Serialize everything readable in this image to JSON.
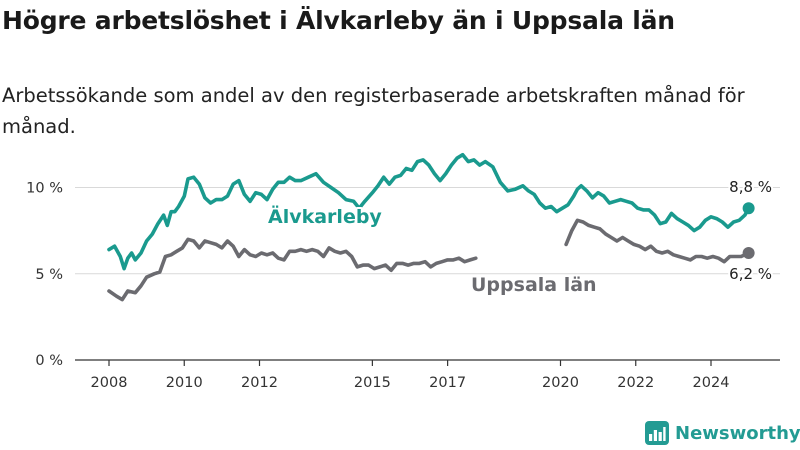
{
  "title": "Högre arbetslöshet i Älvkarleby än i Uppsala län",
  "subtitle": "Arbetssökande som andel av den registerbaserade arbetskraften månad för månad.",
  "brand": {
    "name": "Newsworthy",
    "icon": "newsworthy-bar-chart-icon",
    "color": "#239b93"
  },
  "chart_data": {
    "type": "line",
    "xlabel": "",
    "ylabel": "",
    "ylim": [
      0,
      12
    ],
    "xlim": [
      2007.5,
      2025.3
    ],
    "grid": true,
    "yticks": [
      {
        "value": 0,
        "label": "0 %"
      },
      {
        "value": 5,
        "label": "5 %"
      },
      {
        "value": 10,
        "label": "10 %"
      }
    ],
    "xticks": [
      {
        "value": 2008,
        "label": "2008"
      },
      {
        "value": 2010,
        "label": "2010"
      },
      {
        "value": 2012,
        "label": "2012"
      },
      {
        "value": 2015,
        "label": "2015"
      },
      {
        "value": 2017,
        "label": "2017"
      },
      {
        "value": 2020,
        "label": "2020"
      },
      {
        "value": 2022,
        "label": "2022"
      },
      {
        "value": 2024,
        "label": "2024"
      }
    ],
    "series": [
      {
        "name": "Älvkarleby",
        "color": "#1a9a8e",
        "end_label": "8,8 %",
        "points": [
          [
            2008.0,
            6.4
          ],
          [
            2008.15,
            6.6
          ],
          [
            2008.3,
            6.0
          ],
          [
            2008.4,
            5.3
          ],
          [
            2008.5,
            5.9
          ],
          [
            2008.6,
            6.2
          ],
          [
            2008.7,
            5.8
          ],
          [
            2008.85,
            6.2
          ],
          [
            2009.0,
            6.9
          ],
          [
            2009.15,
            7.3
          ],
          [
            2009.3,
            7.9
          ],
          [
            2009.45,
            8.4
          ],
          [
            2009.55,
            7.8
          ],
          [
            2009.65,
            8.6
          ],
          [
            2009.75,
            8.6
          ],
          [
            2009.85,
            8.9
          ],
          [
            2010.0,
            9.5
          ],
          [
            2010.1,
            10.5
          ],
          [
            2010.25,
            10.6
          ],
          [
            2010.4,
            10.2
          ],
          [
            2010.55,
            9.4
          ],
          [
            2010.7,
            9.1
          ],
          [
            2010.85,
            9.3
          ],
          [
            2011.0,
            9.3
          ],
          [
            2011.15,
            9.5
          ],
          [
            2011.3,
            10.2
          ],
          [
            2011.45,
            10.4
          ],
          [
            2011.6,
            9.6
          ],
          [
            2011.75,
            9.2
          ],
          [
            2011.9,
            9.7
          ],
          [
            2012.05,
            9.6
          ],
          [
            2012.2,
            9.3
          ],
          [
            2012.35,
            9.9
          ],
          [
            2012.5,
            10.3
          ],
          [
            2012.65,
            10.3
          ],
          [
            2012.8,
            10.6
          ],
          [
            2012.95,
            10.4
          ],
          [
            2013.1,
            10.4
          ],
          [
            2013.3,
            10.6
          ],
          [
            2013.5,
            10.8
          ],
          [
            2013.7,
            10.3
          ],
          [
            2013.9,
            10.0
          ],
          [
            2014.1,
            9.7
          ],
          [
            2014.3,
            9.3
          ],
          [
            2014.5,
            9.2
          ],
          [
            2014.65,
            8.8
          ],
          [
            2014.8,
            9.2
          ],
          [
            2015.0,
            9.7
          ],
          [
            2015.15,
            10.1
          ],
          [
            2015.3,
            10.6
          ],
          [
            2015.45,
            10.2
          ],
          [
            2015.6,
            10.6
          ],
          [
            2015.75,
            10.7
          ],
          [
            2015.9,
            11.1
          ],
          [
            2016.05,
            11.0
          ],
          [
            2016.2,
            11.5
          ],
          [
            2016.35,
            11.6
          ],
          [
            2016.5,
            11.3
          ],
          [
            2016.65,
            10.8
          ],
          [
            2016.8,
            10.4
          ],
          [
            2016.95,
            10.8
          ],
          [
            2017.1,
            11.3
          ],
          [
            2017.25,
            11.7
          ],
          [
            2017.4,
            11.9
          ],
          [
            2017.55,
            11.5
          ],
          [
            2017.7,
            11.6
          ],
          [
            2017.85,
            11.3
          ],
          [
            2018.0,
            11.5
          ],
          [
            2018.2,
            11.2
          ],
          [
            2018.4,
            10.3
          ],
          [
            2018.6,
            9.8
          ],
          [
            2018.8,
            9.9
          ],
          [
            2019.0,
            10.1
          ],
          [
            2019.15,
            9.8
          ],
          [
            2019.3,
            9.6
          ],
          [
            2019.45,
            9.1
          ],
          [
            2019.6,
            8.8
          ],
          [
            2019.75,
            8.9
          ],
          [
            2019.9,
            8.6
          ],
          [
            2020.05,
            8.8
          ],
          [
            2020.2,
            9.0
          ],
          [
            2020.35,
            9.5
          ],
          [
            2020.45,
            9.9
          ],
          [
            2020.55,
            10.1
          ],
          [
            2020.7,
            9.8
          ],
          [
            2020.85,
            9.4
          ],
          [
            2021.0,
            9.7
          ],
          [
            2021.15,
            9.5
          ],
          [
            2021.3,
            9.1
          ],
          [
            2021.45,
            9.2
          ],
          [
            2021.6,
            9.3
          ],
          [
            2021.75,
            9.2
          ],
          [
            2021.9,
            9.1
          ],
          [
            2022.05,
            8.8
          ],
          [
            2022.2,
            8.7
          ],
          [
            2022.35,
            8.7
          ],
          [
            2022.5,
            8.4
          ],
          [
            2022.65,
            7.9
          ],
          [
            2022.8,
            8.0
          ],
          [
            2022.95,
            8.5
          ],
          [
            2023.1,
            8.2
          ],
          [
            2023.25,
            8.0
          ],
          [
            2023.4,
            7.8
          ],
          [
            2023.55,
            7.5
          ],
          [
            2023.7,
            7.7
          ],
          [
            2023.85,
            8.1
          ],
          [
            2024.0,
            8.3
          ],
          [
            2024.15,
            8.2
          ],
          [
            2024.3,
            8.0
          ],
          [
            2024.45,
            7.7
          ],
          [
            2024.6,
            8.0
          ],
          [
            2024.75,
            8.1
          ],
          [
            2024.9,
            8.4
          ],
          [
            2025.0,
            8.8
          ]
        ]
      },
      {
        "name": "Uppsala län",
        "color": "#6b6b70",
        "end_label": "6,2 %",
        "points": [
          [
            2008.0,
            4.0
          ],
          [
            2008.2,
            3.7
          ],
          [
            2008.35,
            3.5
          ],
          [
            2008.5,
            4.0
          ],
          [
            2008.7,
            3.9
          ],
          [
            2008.85,
            4.3
          ],
          [
            2009.0,
            4.8
          ],
          [
            2009.2,
            5.0
          ],
          [
            2009.35,
            5.1
          ],
          [
            2009.5,
            6.0
          ],
          [
            2009.65,
            6.1
          ],
          [
            2009.8,
            6.3
          ],
          [
            2009.95,
            6.5
          ],
          [
            2010.1,
            7.0
          ],
          [
            2010.25,
            6.9
          ],
          [
            2010.4,
            6.5
          ],
          [
            2010.55,
            6.9
          ],
          [
            2010.7,
            6.8
          ],
          [
            2010.85,
            6.7
          ],
          [
            2011.0,
            6.5
          ],
          [
            2011.15,
            6.9
          ],
          [
            2011.3,
            6.6
          ],
          [
            2011.45,
            6.0
          ],
          [
            2011.6,
            6.4
          ],
          [
            2011.75,
            6.1
          ],
          [
            2011.9,
            6.0
          ],
          [
            2012.05,
            6.2
          ],
          [
            2012.2,
            6.1
          ],
          [
            2012.35,
            6.2
          ],
          [
            2012.5,
            5.9
          ],
          [
            2012.65,
            5.8
          ],
          [
            2012.8,
            6.3
          ],
          [
            2012.95,
            6.3
          ],
          [
            2013.1,
            6.4
          ],
          [
            2013.25,
            6.3
          ],
          [
            2013.4,
            6.4
          ],
          [
            2013.55,
            6.3
          ],
          [
            2013.7,
            6.0
          ],
          [
            2013.85,
            6.5
          ],
          [
            2014.0,
            6.3
          ],
          [
            2014.15,
            6.2
          ],
          [
            2014.3,
            6.3
          ],
          [
            2014.45,
            6.0
          ],
          [
            2014.6,
            5.4
          ],
          [
            2014.75,
            5.5
          ],
          [
            2014.9,
            5.5
          ],
          [
            2015.05,
            5.3
          ],
          [
            2015.2,
            5.4
          ],
          [
            2015.35,
            5.5
          ],
          [
            2015.5,
            5.2
          ],
          [
            2015.65,
            5.6
          ],
          [
            2015.8,
            5.6
          ],
          [
            2015.95,
            5.5
          ],
          [
            2016.1,
            5.6
          ],
          [
            2016.25,
            5.6
          ],
          [
            2016.4,
            5.7
          ],
          [
            2016.55,
            5.4
          ],
          [
            2016.7,
            5.6
          ],
          [
            2016.85,
            5.7
          ],
          [
            2017.0,
            5.8
          ],
          [
            2017.15,
            5.8
          ],
          [
            2017.3,
            5.9
          ],
          [
            2017.45,
            5.7
          ],
          [
            2017.6,
            5.8
          ],
          [
            2017.75,
            5.9
          ]
        ],
        "points_after_gap": [
          [
            2020.15,
            6.7
          ],
          [
            2020.3,
            7.5
          ],
          [
            2020.45,
            8.1
          ],
          [
            2020.6,
            8.0
          ],
          [
            2020.75,
            7.8
          ],
          [
            2020.9,
            7.7
          ],
          [
            2021.05,
            7.6
          ],
          [
            2021.2,
            7.3
          ],
          [
            2021.35,
            7.1
          ],
          [
            2021.5,
            6.9
          ],
          [
            2021.65,
            7.1
          ],
          [
            2021.8,
            6.9
          ],
          [
            2021.95,
            6.7
          ],
          [
            2022.1,
            6.6
          ],
          [
            2022.25,
            6.4
          ],
          [
            2022.4,
            6.6
          ],
          [
            2022.55,
            6.3
          ],
          [
            2022.7,
            6.2
          ],
          [
            2022.85,
            6.3
          ],
          [
            2023.0,
            6.1
          ],
          [
            2023.15,
            6.0
          ],
          [
            2023.3,
            5.9
          ],
          [
            2023.45,
            5.8
          ],
          [
            2023.6,
            6.0
          ],
          [
            2023.75,
            6.0
          ],
          [
            2023.9,
            5.9
          ],
          [
            2024.05,
            6.0
          ],
          [
            2024.2,
            5.9
          ],
          [
            2024.35,
            5.7
          ],
          [
            2024.5,
            6.0
          ],
          [
            2024.65,
            6.0
          ],
          [
            2024.8,
            6.0
          ],
          [
            2025.0,
            6.2
          ]
        ]
      }
    ]
  }
}
